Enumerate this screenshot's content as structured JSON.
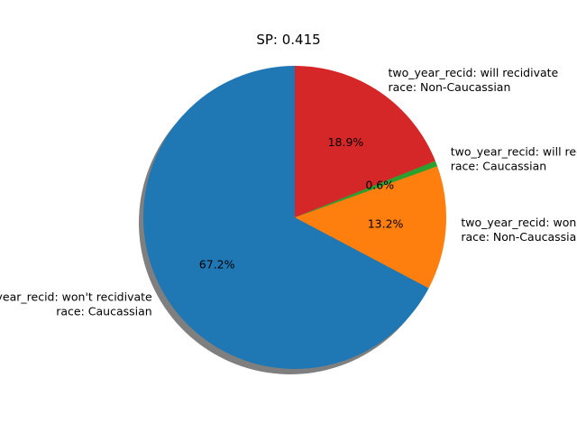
{
  "chart_data": {
    "type": "pie",
    "title": "SP: 0.415",
    "slices": [
      {
        "label_line1": "two_year_recid: won't recidivate",
        "label_line2": "race: Caucassian",
        "value": 67.2,
        "pct_label": "67.2%",
        "color": "#1f77b4"
      },
      {
        "label_line1": "two_year_recid: won't recidivate",
        "label_line2": "race: Non-Caucassian",
        "value": 13.2,
        "pct_label": "13.2%",
        "color": "#ff7f0e"
      },
      {
        "label_line1": "two_year_recid: will recidivate",
        "label_line2": "race: Caucassian",
        "value": 0.6,
        "pct_label": "0.6%",
        "color": "#2ca02c"
      },
      {
        "label_line1": "two_year_recid: will recidivate",
        "label_line2": "race: Non-Caucassian",
        "value": 18.9,
        "pct_label": "18.9%",
        "color": "#d62728"
      }
    ],
    "start_angle_deg": 90,
    "shadow": true,
    "legend": "none"
  }
}
